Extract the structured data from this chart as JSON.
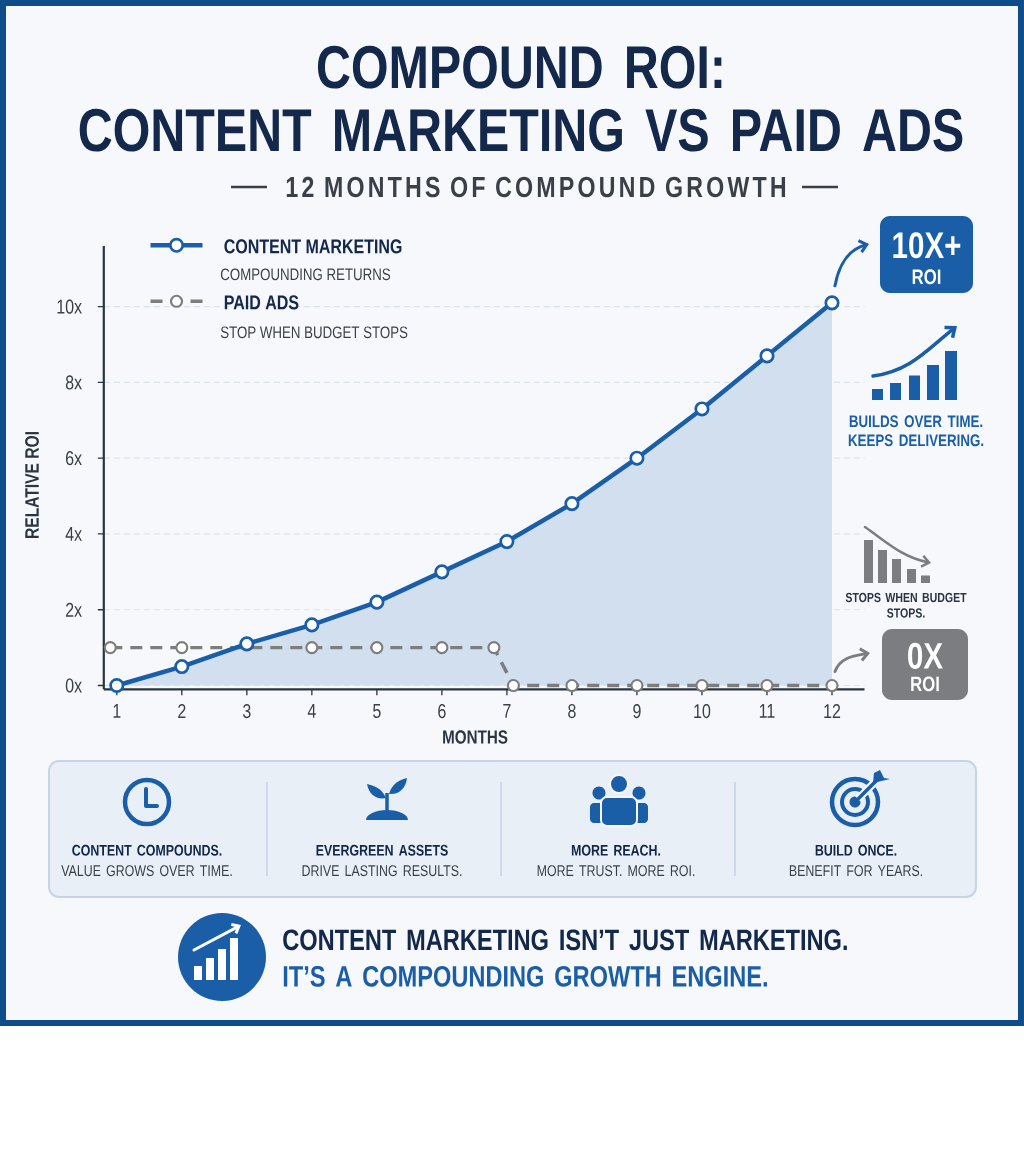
{
  "chart_data": {
    "type": "line",
    "title": "COMPOUND ROI:\nCONTENT MARKETING VS PAID ADS",
    "subtitle": "12 MONTHS OF COMPOUND GROWTH",
    "xlabel": "MONTHS",
    "ylabel": "RELATIVE ROI",
    "xlim": [
      0.8,
      12.5
    ],
    "ylim": [
      -0.1,
      11.6
    ],
    "xticks": [
      1,
      2,
      3,
      4,
      5,
      6,
      7,
      8,
      9,
      10,
      11,
      12
    ],
    "yticks": [
      {
        "value": 0,
        "label": "0x"
      },
      {
        "value": 2,
        "label": "2x"
      },
      {
        "value": 4,
        "label": "4x"
      },
      {
        "value": 6,
        "label": "6x"
      },
      {
        "value": 8,
        "label": "8x"
      },
      {
        "value": 10,
        "label": "10x"
      }
    ],
    "grid": "y",
    "legend": "top left",
    "marker": "circle",
    "series": [
      {
        "name": "CONTENT MARKETING",
        "type": "area",
        "color": "#1b5ea8",
        "line_style": "solid",
        "x": [
          1,
          2,
          3,
          4,
          5,
          6,
          7,
          8,
          9,
          10,
          11,
          12
        ],
        "values": [
          0,
          0.5,
          1.1,
          1.6,
          2.2,
          3.0,
          3.8,
          4.8,
          6.0,
          7.3,
          8.7,
          10.1
        ]
      },
      {
        "name": "PAID ADS",
        "type": "line",
        "color": "#7d7d7d",
        "line_style": "dashed",
        "x": [
          0.9,
          2,
          4,
          5,
          6,
          6.8,
          7.1,
          8,
          9,
          10,
          11,
          12
        ],
        "values": [
          1,
          1,
          1,
          1,
          1,
          1,
          0,
          0,
          0,
          0,
          0,
          0
        ]
      }
    ],
    "annotations": [
      "COMPOUNDING RETURNS",
      "STOP WHEN BUDGET STOPS",
      {
        "text": "10X+\nROI",
        "x": 12,
        "y": 10.1
      },
      "BUILDS OVER TIME.\nKEEPS DELIVERING.",
      "STOPS WHEN BUDGET\nSTOPS.",
      {
        "text": "0X\nROI",
        "x": 12,
        "y": 0
      },
      "CONTENT COMPOUNDS.",
      "VALUE GROWS OVER TIME.",
      "EVERGREEN ASSETS",
      "DRIVE LASTING RESULTS.",
      "MORE REACH.",
      "MORE TRUST. MORE ROI.",
      "BUILD ONCE.",
      "BENEFIT FOR YEARS.",
      "CONTENT MARKETING ISN’T  JUST MARKETING.",
      "IT’S A COMPOUNDING GROWTH ENGINE."
    ]
  }
}
